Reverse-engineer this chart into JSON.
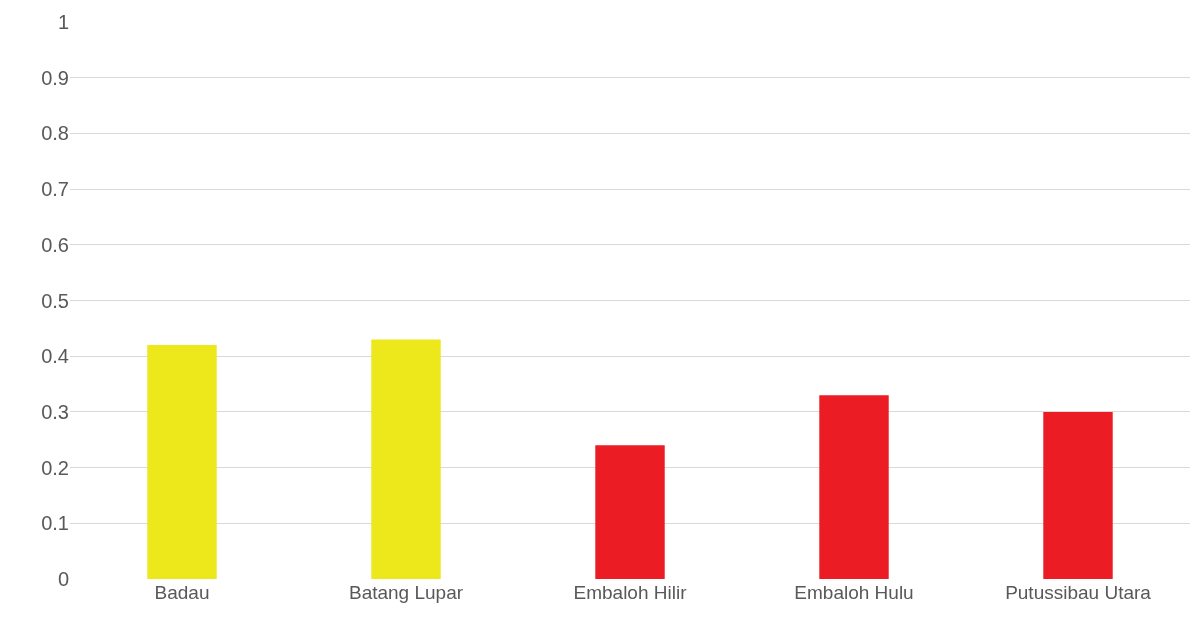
{
  "chart_data": {
    "type": "bar",
    "categories": [
      "Badau",
      "Batang Lupar",
      "Embaloh Hilir",
      "Embaloh Hulu",
      "Putussibau Utara"
    ],
    "values": [
      0.42,
      0.43,
      0.24,
      0.33,
      0.3
    ],
    "colors": [
      "#ede81c",
      "#ede81c",
      "#ec1c24",
      "#ec1c24",
      "#ec1c24"
    ],
    "ylim": [
      0,
      1
    ],
    "yticks": [
      0,
      0.1,
      0.2,
      0.3,
      0.4,
      0.5,
      0.6,
      0.7,
      0.8,
      0.9,
      1
    ],
    "grid": "y"
  }
}
